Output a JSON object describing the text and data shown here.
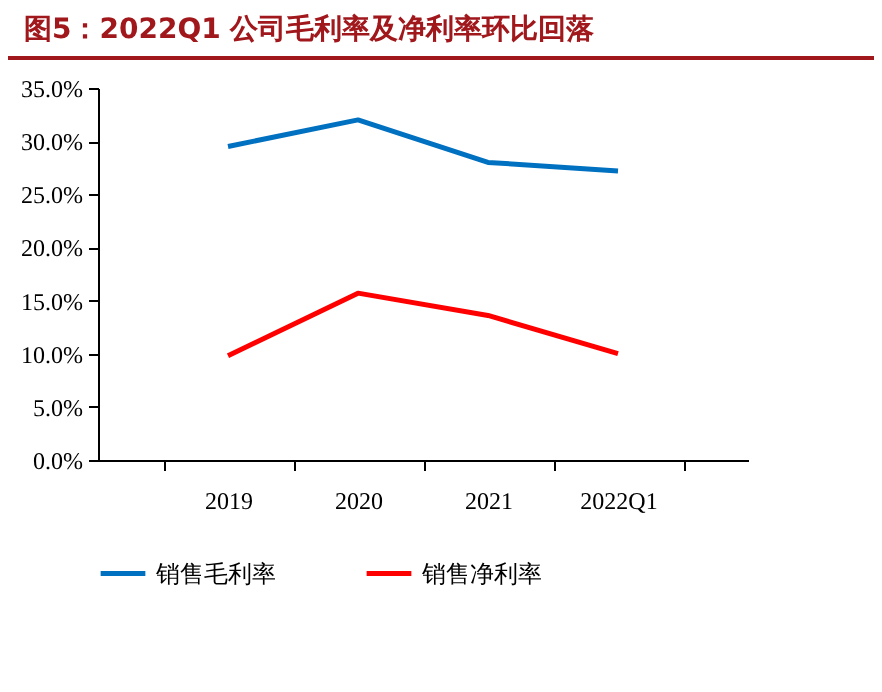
{
  "chart_data": {
    "type": "line",
    "title": "图5：2022Q1 公司毛利率及净利率环比回落",
    "categories": [
      "2019",
      "2020",
      "2021",
      "2022Q1"
    ],
    "series": [
      {
        "name": "销售毛利率",
        "color": "#0070c0",
        "values": [
          29.5,
          32.0,
          28.0,
          27.2
        ]
      },
      {
        "name": "销售净利率",
        "color": "#ff0000",
        "values": [
          9.8,
          15.7,
          13.6,
          10.0
        ]
      }
    ],
    "ylim": [
      0,
      35
    ],
    "yticks": [
      {
        "value": 0,
        "label": "0.0%"
      },
      {
        "value": 5,
        "label": "5.0%"
      },
      {
        "value": 10,
        "label": "10.0%"
      },
      {
        "value": 15,
        "label": "15.0%"
      },
      {
        "value": 20,
        "label": "20.0%"
      },
      {
        "value": 25,
        "label": "25.0%"
      },
      {
        "value": 30,
        "label": "30.0%"
      },
      {
        "value": 35,
        "label": "35.0%"
      }
    ],
    "grid": false,
    "legend": "bottom",
    "line_style": "solid"
  }
}
